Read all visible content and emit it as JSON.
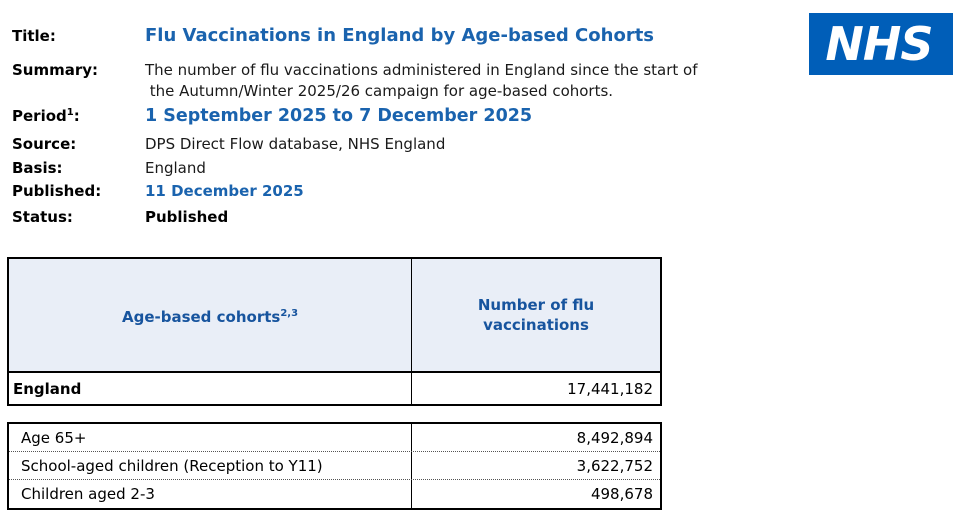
{
  "meta": {
    "title_label": "Title:",
    "title": "Flu Vaccinations in England by Age-based Cohorts",
    "summary_label": "Summary:",
    "summary": "The number of flu vaccinations administered in England since the start of\n the Autumn/Winter 2025/26 campaign for age-based cohorts.",
    "period_label": "Period",
    "period_sup": "1",
    "period_colon": ":",
    "period": "1 September 2025 to 7 December 2025",
    "source_label": "Source:",
    "source": "DPS Direct Flow database, NHS England",
    "basis_label": "Basis:",
    "basis": "England",
    "published_label": "Published:",
    "published": "11 December 2025",
    "status_label": "Status:",
    "status": "Published"
  },
  "logo": {
    "text": "NHS"
  },
  "table": {
    "col1_header": "Age-based cohorts",
    "col1_header_sup": "2,3",
    "col2_header": "Number of flu\nvaccinations",
    "england": {
      "label": "England",
      "value": "17,441,182"
    },
    "rows": [
      {
        "label": "Age 65+",
        "value": "8,492,894"
      },
      {
        "label": "School-aged children (Reception to Y11)",
        "value": "3,622,752"
      },
      {
        "label": "Children aged 2-3",
        "value": "498,678"
      }
    ]
  },
  "colors": {
    "nhs_blue": "#005EB8",
    "heading_blue": "#1a63ae",
    "table_header_text_blue": "#17549e",
    "table_header_bg": "#e9eef7"
  }
}
